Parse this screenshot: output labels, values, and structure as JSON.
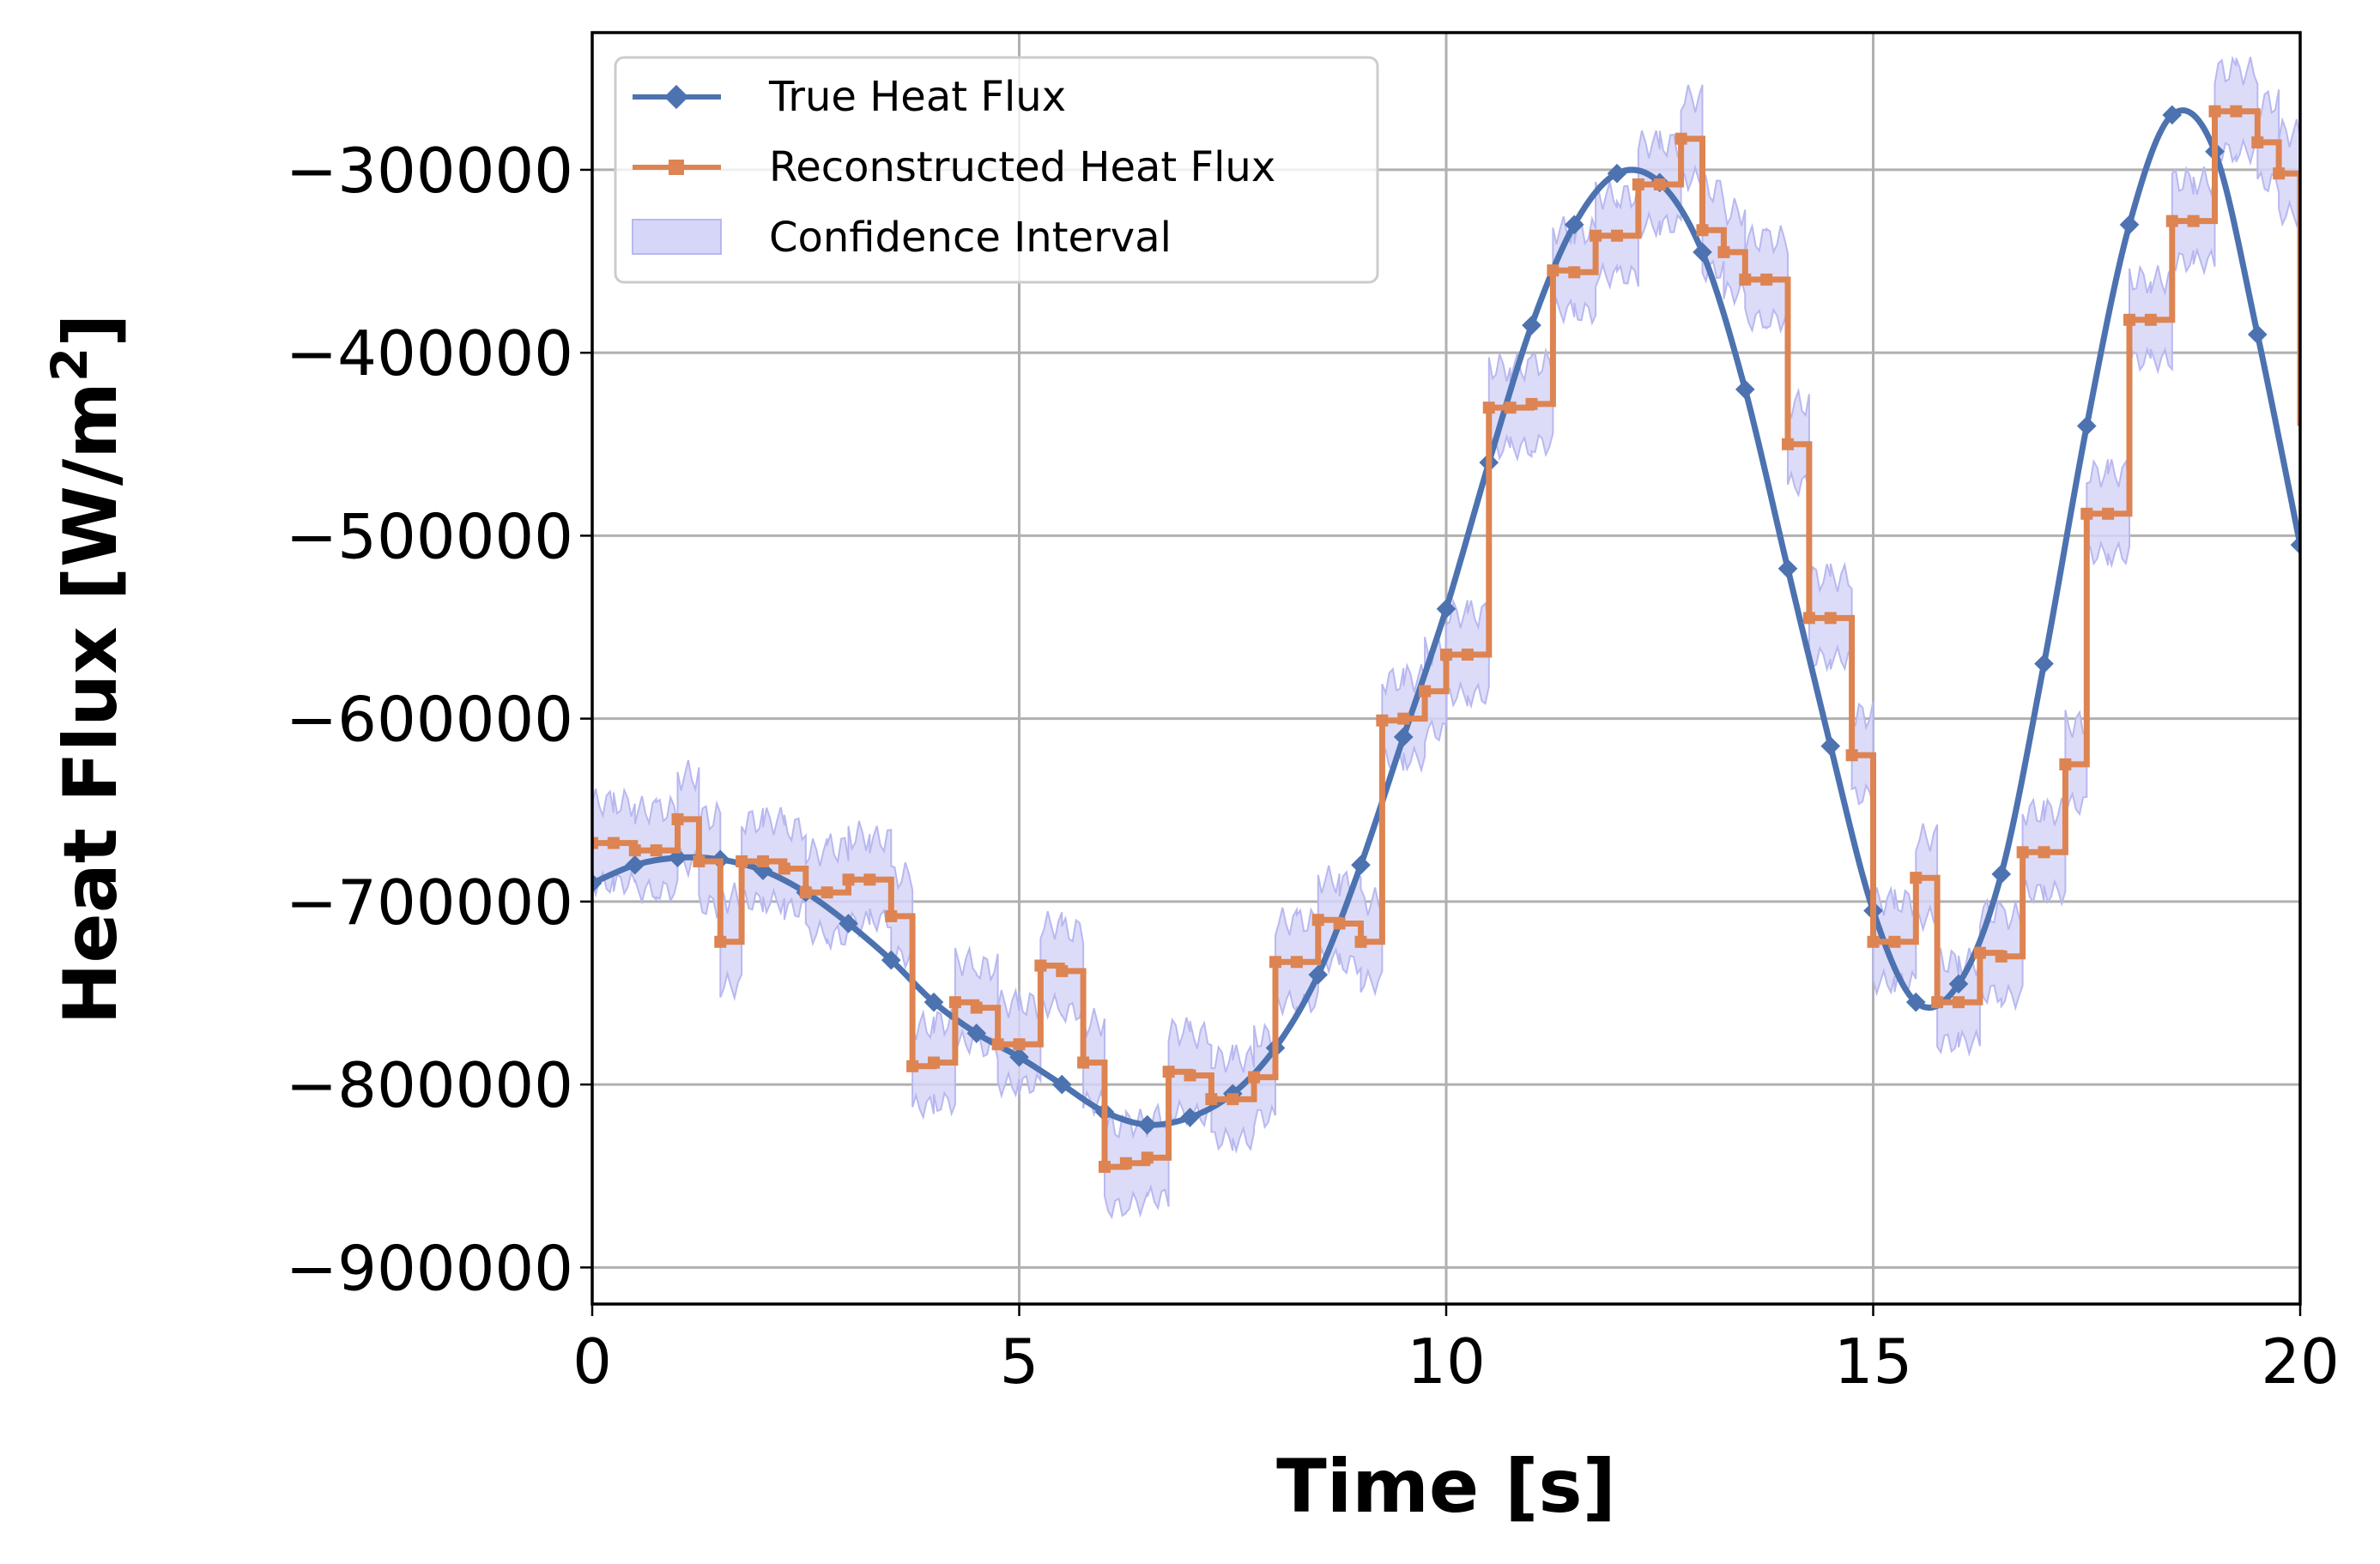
{
  "chart_data": {
    "type": "line",
    "title": "",
    "xlabel": "Time [s]",
    "ylabel": "Heat Flux [W/m",
    "ylabel_sup": "2",
    "ylabel_close": "]",
    "xlim": [
      0,
      20
    ],
    "ylim": [
      -920000,
      -225000
    ],
    "grid": true,
    "legend_position": "top-left",
    "x_ticks": [
      0,
      5,
      10,
      15,
      20
    ],
    "x_tick_labels": [
      "0",
      "5",
      "10",
      "15",
      "20"
    ],
    "y_ticks": [
      -300000,
      -400000,
      -500000,
      -600000,
      -700000,
      -800000,
      -900000
    ],
    "y_tick_labels": [
      "−300000",
      "−400000",
      "−500000",
      "−600000",
      "−700000",
      "−800000",
      "−900000"
    ],
    "colors": {
      "true": "#4c72b0",
      "reconstructed": "#dd8452",
      "confidence": "#d6d6f8",
      "confidence_edge": "#b8b8f0"
    },
    "series": [
      {
        "name": "True Heat Flux",
        "style": "line-diamond",
        "x": [
          0,
          0.5,
          1,
          1.5,
          2,
          2.5,
          3,
          3.5,
          4,
          4.5,
          5,
          5.5,
          6,
          6.5,
          7,
          7.5,
          8,
          8.5,
          9,
          9.5,
          10,
          10.5,
          11,
          11.5,
          12,
          12.5,
          13,
          13.5,
          14,
          14.5,
          15,
          15.5,
          16,
          16.5,
          17,
          17.5,
          18,
          18.5,
          19,
          19.5,
          20
        ],
        "y": [
          -690000,
          -680000,
          -676000,
          -677000,
          -683000,
          -695000,
          -712000,
          -732000,
          -755000,
          -772000,
          -785000,
          -800000,
          -815000,
          -822000,
          -818000,
          -805000,
          -780000,
          -740000,
          -680000,
          -610000,
          -540000,
          -460000,
          -385000,
          -330000,
          -302000,
          -307000,
          -345000,
          -420000,
          -518000,
          -615000,
          -705000,
          -755000,
          -745000,
          -685000,
          -570000,
          -440000,
          -330000,
          -270000,
          -290000,
          -390000,
          -505000
        ]
      },
      {
        "name": "Reconstructed Heat Flux",
        "style": "step-square",
        "x": [
          0,
          0.25,
          0.5,
          0.75,
          1,
          1.25,
          1.5,
          1.75,
          2,
          2.25,
          2.5,
          2.75,
          3,
          3.25,
          3.5,
          3.75,
          4,
          4.25,
          4.5,
          4.75,
          5,
          5.25,
          5.5,
          5.75,
          6,
          6.25,
          6.5,
          6.75,
          7,
          7.25,
          7.5,
          7.75,
          8,
          8.25,
          8.5,
          8.75,
          9,
          9.25,
          9.5,
          9.75,
          10,
          10.25,
          10.5,
          10.75,
          11,
          11.25,
          11.5,
          11.75,
          12,
          12.25,
          12.5,
          12.75,
          13,
          13.25,
          13.5,
          13.75,
          14,
          14.25,
          14.5,
          14.75,
          15,
          15.25,
          15.5,
          15.75,
          16,
          16.25,
          16.5,
          16.75,
          17,
          17.25,
          17.5,
          17.75,
          18,
          18.25,
          18.5,
          18.75,
          19,
          19.25,
          19.5,
          19.75
        ],
        "y": [
          -668000,
          -668000,
          -672000,
          -672000,
          -655000,
          -678000,
          -722000,
          -678000,
          -678000,
          -682000,
          -695000,
          -695000,
          -688000,
          -688000,
          -708000,
          -790000,
          -788000,
          -755000,
          -758000,
          -778000,
          -778000,
          -735000,
          -738000,
          -788000,
          -845000,
          -843000,
          -840000,
          -793000,
          -795000,
          -808000,
          -808000,
          -796000,
          -733000,
          -733000,
          -710000,
          -712000,
          -722000,
          -601000,
          -600000,
          -585000,
          -565000,
          -565000,
          -430000,
          -430000,
          -428000,
          -355000,
          -356000,
          -336000,
          -336000,
          -308000,
          -308000,
          -283000,
          -333000,
          -345000,
          -360000,
          -360000,
          -450000,
          -545000,
          -545000,
          -620000,
          -722000,
          -722000,
          -687000,
          -755000,
          -755000,
          -728000,
          -730000,
          -673000,
          -673000,
          -625000,
          -488000,
          -488000,
          -382000,
          -382000,
          -328000,
          -328000,
          -268000,
          -268000,
          -285000,
          -302000
        ],
        "x_end": 20,
        "y_end": -440000
      },
      {
        "name": "Confidence Interval",
        "style": "band"
      }
    ],
    "band_half_width": [
      22000,
      22000,
      22000,
      22000,
      24000,
      24000,
      24000,
      22000,
      22000,
      22000,
      22000,
      24000,
      24000,
      22000,
      22000,
      22000,
      22000,
      22000,
      22000,
      22000,
      22000,
      22000,
      22000,
      22000,
      22000,
      22000,
      22000,
      22000,
      22000,
      22000,
      22000,
      22000,
      22000,
      22000,
      22000,
      22000,
      22000,
      22000,
      22000,
      22000,
      22000,
      22000,
      22000,
      22000,
      22000,
      22000,
      22000,
      22000,
      22000,
      22000,
      22000,
      22000,
      22000,
      22000,
      22000,
      22000,
      22000,
      22000,
      22000,
      22000,
      22000,
      22000,
      22000,
      22000,
      22000,
      22000,
      22000,
      22000,
      22000,
      22000,
      22000,
      22000,
      22000,
      22000,
      22000,
      22000,
      22000,
      22000,
      22000,
      22000
    ]
  }
}
